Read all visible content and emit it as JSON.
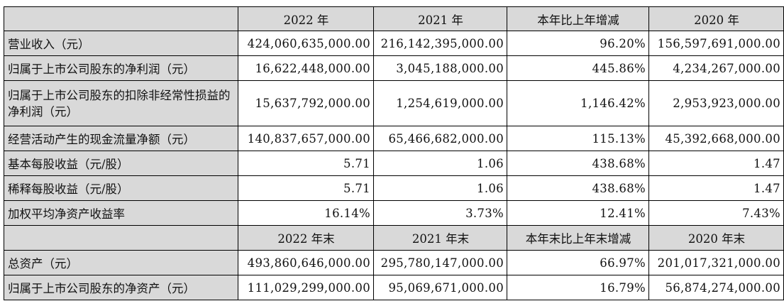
{
  "header1": [
    "",
    "2022 年",
    "2021 年",
    "本年比上年增减",
    "2020 年"
  ],
  "rows1": [
    {
      "label": "营业收入（元）",
      "values": [
        "424,060,635,000.00",
        "216,142,395,000.00",
        "96.20%",
        "156,597,691,000.00"
      ]
    },
    {
      "label": "归属于上市公司股东的净利润（元）",
      "values": [
        "16,622,448,000.00",
        "3,045,188,000.00",
        "445.86%",
        "4,234,267,000.00"
      ]
    },
    {
      "label": "归属于上市公司股东的扣除非经常性损益的净利润（元）",
      "values": [
        "15,637,792,000.00",
        "1,254,619,000.00",
        "1,146.42%",
        "2,953,923,000.00"
      ]
    },
    {
      "label": "经营活动产生的现金流量净额（元）",
      "values": [
        "140,837,657,000.00",
        "65,466,682,000.00",
        "115.13%",
        "45,392,668,000.00"
      ]
    },
    {
      "label": "基本每股收益（元/股）",
      "values": [
        "5.71",
        "1.06",
        "438.68%",
        "1.47"
      ]
    },
    {
      "label": "稀释每股收益（元/股）",
      "values": [
        "5.71",
        "1.06",
        "438.68%",
        "1.47"
      ]
    },
    {
      "label": "加权平均净资产收益率",
      "values": [
        "16.14%",
        "3.73%",
        "12.41%",
        "7.43%"
      ]
    }
  ],
  "header2": [
    "",
    "2022 年末",
    "2021 年末",
    "本年末比上年末增减",
    "2020 年末"
  ],
  "rows2": [
    {
      "label": "总资产（元）",
      "values": [
        "493,860,646,000.00",
        "295,780,147,000.00",
        "66.97%",
        "201,017,321,000.00"
      ]
    },
    {
      "label": "归属于上市公司股东的净资产（元）",
      "values": [
        "111,029,299,000.00",
        "95,069,671,000.00",
        "16.79%",
        "56,874,274,000.00"
      ]
    }
  ]
}
